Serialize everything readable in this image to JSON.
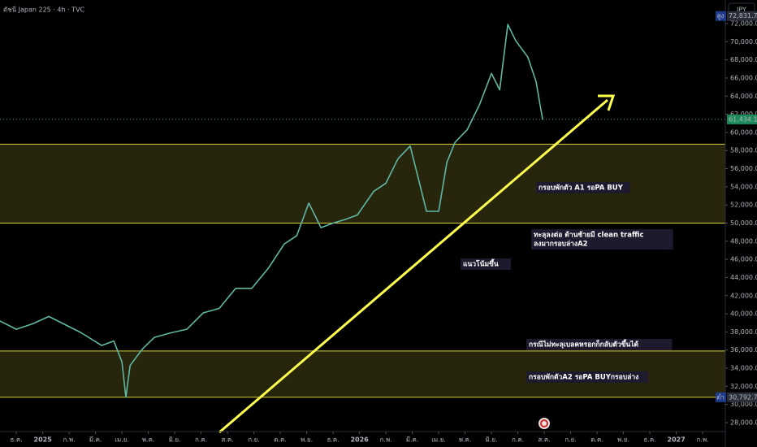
{
  "chart_data": {
    "type": "line",
    "title": "ดัชนี Japan 225 · 4h · TVC",
    "currency": "JPY",
    "x": [
      -0.62,
      0,
      0.62,
      1.23,
      1.85,
      2.46,
      3.23,
      3.69,
      4.0,
      4.15,
      4.31,
      4.77,
      5.23,
      5.85,
      6.46,
      7.08,
      7.69,
      8.31,
      8.92,
      9.54,
      10.15,
      10.62,
      11.08,
      11.54,
      12.0,
      12.46,
      12.92,
      13.54,
      14.0,
      14.46,
      14.92,
      15.23,
      15.54,
      16.0,
      16.31,
      16.62,
      17.08,
      17.54,
      18.0,
      18.31,
      18.62,
      18.92,
      19.38,
      19.69,
      19.94
    ],
    "series": [
      {
        "name": "Japan 225",
        "color": "#5fb8a4",
        "values": [
          39200,
          38300,
          38900,
          39700,
          38800,
          37900,
          36500,
          37000,
          34700,
          30800,
          34300,
          36100,
          37400,
          37900,
          38300,
          40100,
          40600,
          42800,
          42800,
          45000,
          47700,
          48600,
          52200,
          49500,
          50000,
          50400,
          50900,
          53500,
          54400,
          57100,
          58500,
          54900,
          51300,
          51300,
          56700,
          58900,
          60300,
          63000,
          66500,
          64700,
          71900,
          70100,
          68300,
          65600,
          61400
        ]
      }
    ],
    "xlim": [
      -0.62,
      26.86
    ],
    "xticks": [
      {
        "value": 0,
        "label": "ธ.ค."
      },
      {
        "value": 1,
        "label": "2025"
      },
      {
        "value": 2,
        "label": "ก.พ."
      },
      {
        "value": 3,
        "label": "มี.ค."
      },
      {
        "value": 4,
        "label": "เม.ย."
      },
      {
        "value": 5,
        "label": "พ.ค."
      },
      {
        "value": 6,
        "label": "มิ.ย."
      },
      {
        "value": 7,
        "label": "ก.ค."
      },
      {
        "value": 8,
        "label": "ส.ค."
      },
      {
        "value": 9,
        "label": "ก.ย."
      },
      {
        "value": 10,
        "label": "ต.ค."
      },
      {
        "value": 11,
        "label": "พ.ย."
      },
      {
        "value": 12,
        "label": "ธ.ค."
      },
      {
        "value": 13,
        "label": "2026"
      },
      {
        "value": 14,
        "label": "ก.พ."
      },
      {
        "value": 15,
        "label": "มี.ค."
      },
      {
        "value": 16,
        "label": "เม.ย."
      },
      {
        "value": 17,
        "label": "พ.ค."
      },
      {
        "value": 18,
        "label": "มิ.ย."
      },
      {
        "value": 19,
        "label": "ก.ค."
      },
      {
        "value": 20,
        "label": "ส.ค."
      },
      {
        "value": 21,
        "label": "ก.ย."
      },
      {
        "value": 22,
        "label": "ต.ค."
      },
      {
        "value": 23,
        "label": "พ.ย."
      },
      {
        "value": 24,
        "label": "ธ.ค."
      },
      {
        "value": 25,
        "label": "2027"
      },
      {
        "value": 26,
        "label": "ก.พ."
      }
    ],
    "ylim": [
      25310,
      74600
    ],
    "yticks": [
      {
        "value": 28000,
        "label": "28,000.00"
      },
      {
        "value": 30000,
        "label": "30,000.00"
      },
      {
        "value": 32000,
        "label": "32,000.00"
      },
      {
        "value": 34000,
        "label": "34,000.00"
      },
      {
        "value": 36000,
        "label": "36,000.00"
      },
      {
        "value": 38000,
        "label": "38,000.00"
      },
      {
        "value": 40000,
        "label": "40,000.00"
      },
      {
        "value": 42000,
        "label": "42,000.00"
      },
      {
        "value": 44000,
        "label": "44,000.00"
      },
      {
        "value": 46000,
        "label": "46,000.00"
      },
      {
        "value": 48000,
        "label": "48,000.00"
      },
      {
        "value": 50000,
        "label": "50,000.00"
      },
      {
        "value": 52000,
        "label": "52,000.00"
      },
      {
        "value": 54000,
        "label": "54,000.00"
      },
      {
        "value": 56000,
        "label": "56,000.00"
      },
      {
        "value": 58000,
        "label": "58,000.00"
      },
      {
        "value": 60000,
        "label": "60,000.00"
      },
      {
        "value": 62000,
        "label": "62,000.00"
      },
      {
        "value": 64000,
        "label": "64,000.00"
      },
      {
        "value": 66000,
        "label": "66,000.00"
      },
      {
        "value": 68000,
        "label": "68,000.00"
      },
      {
        "value": 70000,
        "label": "70,000.00"
      },
      {
        "value": 72000,
        "label": "72,000.00"
      }
    ],
    "zones": [
      {
        "low": 50000,
        "high": 58700
      },
      {
        "low": 30800,
        "high": 35900
      }
    ],
    "last_price": {
      "value": 61434.14,
      "label": "61,434.14"
    },
    "high": {
      "tag": "สูง",
      "value": 72831.75,
      "label": "72,831.75"
    },
    "low": {
      "tag": "ต่ำ",
      "value": 30792.74,
      "label": "30,792.74"
    },
    "annotations": [
      {
        "lines": [
          "กรอบพักตัว A1 รอPA BUY"
        ]
      },
      {
        "lines": [
          "ทะลุลงต่อ ด้านซ้ายมี clean traffic",
          "ลงมากรอบล่างA2"
        ]
      },
      {
        "lines": [
          "แนวโน้มขึ้น"
        ]
      },
      {
        "lines": [
          "กรณีไม่ทะลุเบลคหรอกก็กลับตัวขึ้นได้"
        ]
      },
      {
        "lines": [
          "กรอบพักตัวA2 รอPA BUYกรอบล่าง"
        ]
      }
    ]
  }
}
